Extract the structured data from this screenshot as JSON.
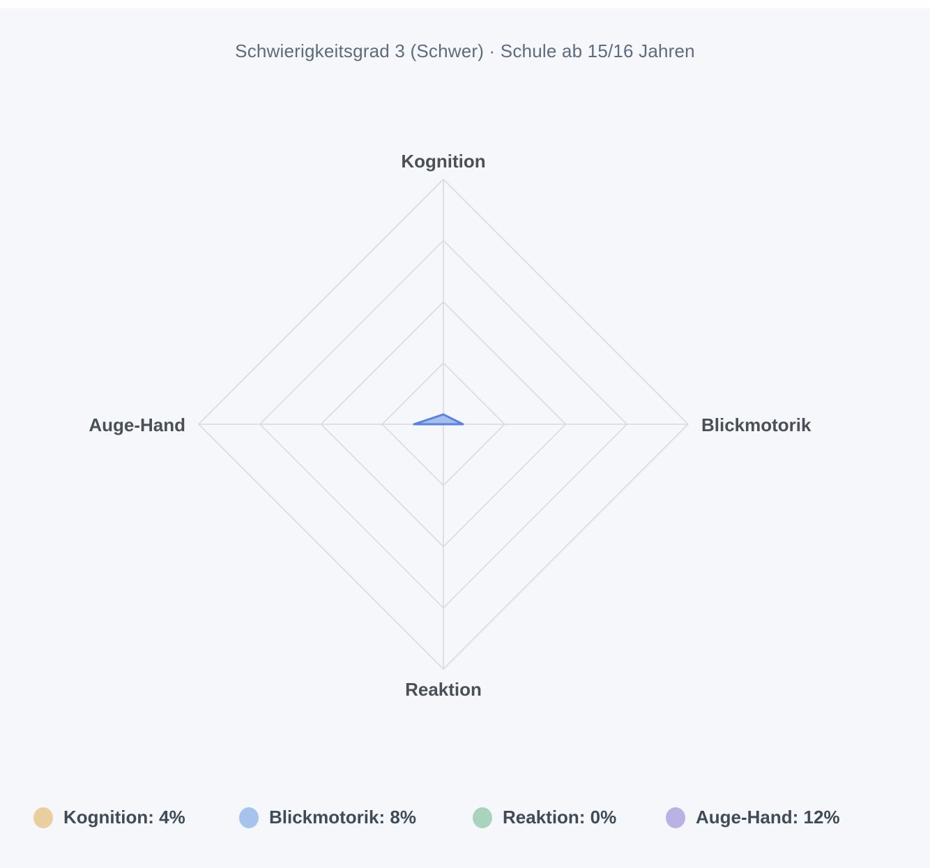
{
  "page": {
    "background_color": "#f6f7fa",
    "top_strip_color": "#ffffff"
  },
  "header": {
    "title": "Schwierigkeitsgrad 3 (Schwer) · Schule ab 15/16 Jahren"
  },
  "chart_data": {
    "type": "radar",
    "categories": [
      "Kognition",
      "Blickmotorik",
      "Reaktion",
      "Auge-Hand"
    ],
    "values": [
      4,
      8,
      0,
      12
    ],
    "unit": "%",
    "max": 100,
    "ring_levels_percent": [
      25,
      50,
      75,
      100
    ],
    "grid_color": "#dcdde1",
    "series_fill_color": "#a6beec",
    "series_stroke_color": "#5b82e0",
    "legend_position": "bottom"
  },
  "axis_labels": {
    "top": "Kognition",
    "right": "Blickmotorik",
    "bottom": "Reaktion",
    "left": "Auge-Hand"
  },
  "legend": {
    "items": [
      {
        "label": "Kognition: 4%",
        "color": "#ebce9d"
      },
      {
        "label": "Blickmotorik: 8%",
        "color": "#a6c3ee"
      },
      {
        "label": "Reaktion: 0%",
        "color": "#a9d3bd"
      },
      {
        "label": "Auge-Hand: 12%",
        "color": "#bab1e5"
      }
    ]
  }
}
